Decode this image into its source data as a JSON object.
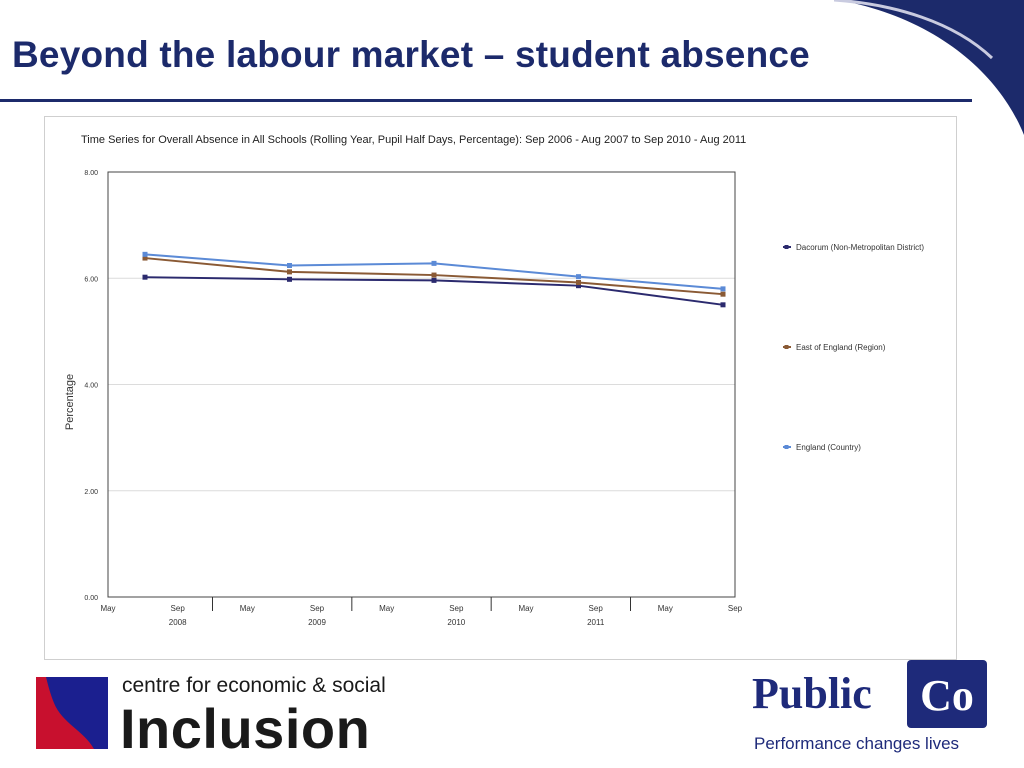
{
  "slide": {
    "title": "Beyond the labour market – student absence"
  },
  "colors": {
    "brand_navy": "#1c2a6b",
    "dacorum": "#2b2a6e",
    "east": "#8a5a35",
    "england": "#5b8ad6",
    "cesi_red": "#c8102e",
    "cesi_blue": "#1b1f8f"
  },
  "logos": {
    "cesi": {
      "line1": "centre for economic & social",
      "line2": "Inclusion"
    },
    "publicco": {
      "left_word": "Public",
      "box_word": "Co",
      "tagline": "Performance changes lives"
    }
  },
  "chart_data": {
    "type": "line",
    "title": "Time Series for Overall Absence in All Schools (Rolling Year, Pupil Half Days, Percentage): Sep 2006 - Aug 2007 to Sep 2010 - Aug 2011",
    "xlabel": "",
    "ylabel": "Percentage",
    "ylim": [
      0,
      8
    ],
    "yticks": [
      "0.00",
      "2.00",
      "4.00",
      "6.00",
      "8.00"
    ],
    "grid": true,
    "legend_position": "right",
    "x_tick_labels": [
      "May",
      "Sep",
      "May",
      "Sep",
      "May",
      "Sep",
      "May",
      "Sep",
      "May",
      "Sep"
    ],
    "x_year_labels": [
      "2008",
      "2009",
      "2010",
      "2011"
    ],
    "x": [
      "Sep 2007",
      "Sep 2008",
      "Sep 2009",
      "Sep 2010",
      "Sep 2011"
    ],
    "series": [
      {
        "name": "Dacorum (Non-Metropolitan District)",
        "color": "#2b2a6e",
        "values": [
          6.02,
          5.98,
          5.96,
          5.86,
          5.5
        ]
      },
      {
        "name": "East of England (Region)",
        "color": "#8a5a35",
        "values": [
          6.38,
          6.12,
          6.06,
          5.92,
          5.7
        ]
      },
      {
        "name": "England (Country)",
        "color": "#5b8ad6",
        "values": [
          6.45,
          6.24,
          6.28,
          6.03,
          5.8
        ]
      }
    ]
  }
}
